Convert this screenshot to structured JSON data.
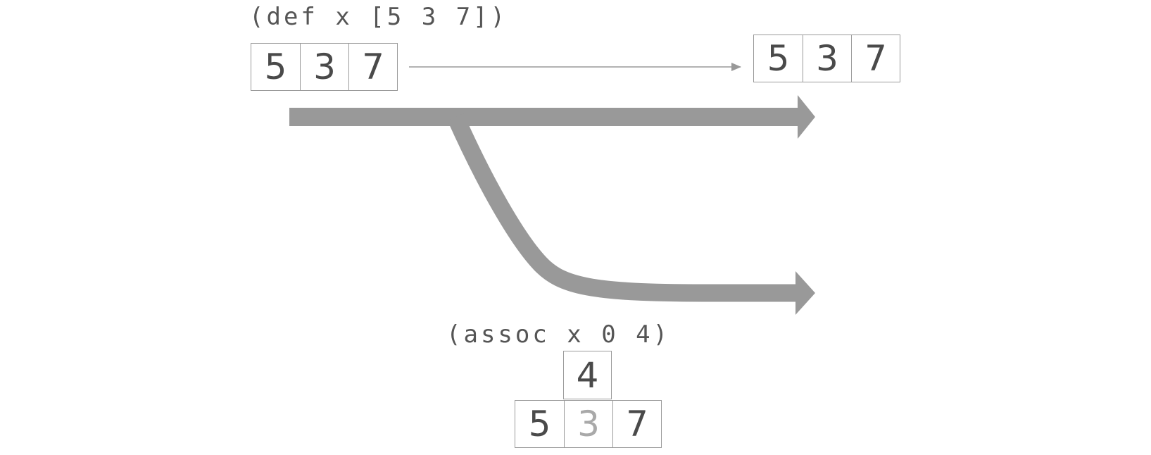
{
  "top": {
    "code": "(def x [5 3 7])",
    "vector": [
      "5",
      "3",
      "7"
    ],
    "result_vector": [
      "5",
      "3",
      "7"
    ]
  },
  "bottom": {
    "code": "(assoc x 0 4)",
    "new_value": "4",
    "vector": [
      "5",
      "3",
      "7"
    ]
  },
  "colors": {
    "arrow": "#999999",
    "box_border": "#9a9a9a",
    "text": "#4a4a4a",
    "faded_text": "#a9a9a9"
  }
}
